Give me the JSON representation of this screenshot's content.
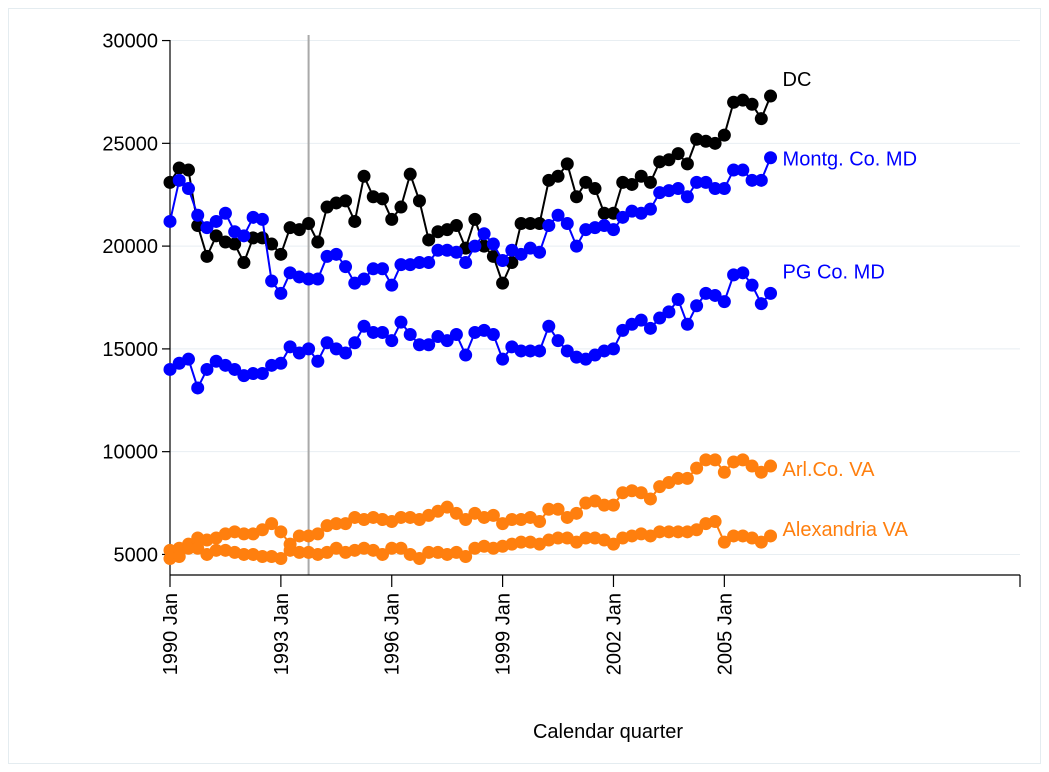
{
  "chart_data": {
    "type": "line",
    "title": "",
    "xlabel": "Calendar quarter",
    "ylabel": "",
    "ylim": [
      4000,
      31000
    ],
    "xlim": [
      "1990 Jan",
      "2013 Jan"
    ],
    "x_ticks": [
      "1990 Jan",
      "1993 Jan",
      "1996 Jan",
      "1999 Jan",
      "2002 Jan",
      "2005 Jan",
      ""
    ],
    "y_ticks": [
      "5000",
      "10000",
      "15000",
      "20000",
      "25000",
      "30000"
    ],
    "reference_line_x": "1993 Q4",
    "grid": true,
    "legend": "none",
    "x_start": "1990 Jan",
    "x_step": "quarter",
    "series": [
      {
        "name": "DC",
        "color": "#000000",
        "values": [
          23100,
          23800,
          23700,
          21000,
          19500,
          20500,
          20200,
          20100,
          19200,
          20400,
          20400,
          20100,
          19600,
          20900,
          20800,
          21100,
          20200,
          21900,
          22100,
          22200,
          21200,
          23400,
          22400,
          22300,
          21300,
          21900,
          23500,
          22200,
          20300,
          20700,
          20800,
          21000,
          19900,
          21300,
          20000,
          19500,
          18200,
          19200,
          21100,
          21100,
          21100,
          23200,
          23400,
          24000,
          22400,
          23100,
          22800,
          21600,
          21600,
          23100,
          23000,
          23400,
          23100,
          24100,
          24200,
          24500,
          24000,
          25200,
          25100,
          25000,
          25400,
          27000,
          27100,
          26900,
          26200,
          27300
        ]
      },
      {
        "name": "Montg. Co. MD",
        "color": "#0000ff",
        "values": [
          21200,
          23200,
          22800,
          21500,
          20900,
          21200,
          21600,
          20700,
          20500,
          21400,
          21300,
          18300,
          17700,
          18700,
          18500,
          18400,
          18400,
          19500,
          19600,
          19000,
          18200,
          18400,
          18900,
          18900,
          18100,
          19100,
          19100,
          19200,
          19200,
          19800,
          19800,
          19700,
          19200,
          20000,
          20600,
          20100,
          19300,
          19800,
          19600,
          19900,
          19700,
          21000,
          21500,
          21100,
          20000,
          20800,
          20900,
          21000,
          20800,
          21400,
          21700,
          21600,
          21800,
          22600,
          22700,
          22800,
          22400,
          23100,
          23100,
          22800,
          22800,
          23700,
          23700,
          23200,
          23200,
          24300
        ]
      },
      {
        "name": "PG Co. MD",
        "color": "#0000ff",
        "values": [
          14000,
          14300,
          14500,
          13100,
          14000,
          14400,
          14200,
          14000,
          13700,
          13800,
          13800,
          14200,
          14300,
          15100,
          14800,
          15000,
          14400,
          15300,
          15000,
          14800,
          15300,
          16100,
          15800,
          15800,
          15400,
          16300,
          15700,
          15200,
          15200,
          15600,
          15400,
          15700,
          14700,
          15800,
          15900,
          15700,
          14500,
          15100,
          14900,
          14900,
          14900,
          16100,
          15400,
          14900,
          14600,
          14500,
          14700,
          14900,
          15000,
          15900,
          16200,
          16400,
          16000,
          16500,
          16800,
          17400,
          16200,
          17100,
          17700,
          17600,
          17300,
          18600,
          18700,
          18100,
          17200,
          17700
        ]
      },
      {
        "name": "Arl.Co. VA",
        "color": "#ff7f0e",
        "values": [
          5200,
          5300,
          5500,
          5800,
          5700,
          5800,
          6000,
          6100,
          6000,
          6000,
          6200,
          6500,
          6100,
          5500,
          5900,
          5900,
          6000,
          6400,
          6500,
          6500,
          6800,
          6700,
          6800,
          6700,
          6600,
          6800,
          6800,
          6700,
          6900,
          7100,
          7300,
          7000,
          6700,
          7000,
          6800,
          6900,
          6500,
          6700,
          6700,
          6800,
          6600,
          7200,
          7200,
          6800,
          7000,
          7500,
          7600,
          7400,
          7400,
          8000,
          8100,
          8000,
          7700,
          8300,
          8500,
          8700,
          8700,
          9200,
          9600,
          9600,
          9000,
          9500,
          9600,
          9300,
          9000,
          9300
        ]
      },
      {
        "name": "Alexandria VA",
        "color": "#ff7f0e",
        "values": [
          4800,
          4900,
          5300,
          5300,
          5000,
          5200,
          5200,
          5100,
          5000,
          5000,
          4900,
          4900,
          4800,
          5200,
          5100,
          5100,
          5000,
          5100,
          5300,
          5100,
          5200,
          5300,
          5200,
          5000,
          5300,
          5300,
          5000,
          4800,
          5100,
          5100,
          5000,
          5100,
          4900,
          5300,
          5400,
          5300,
          5400,
          5500,
          5600,
          5600,
          5500,
          5700,
          5800,
          5800,
          5600,
          5800,
          5800,
          5700,
          5500,
          5800,
          5900,
          6000,
          5900,
          6100,
          6100,
          6100,
          6100,
          6200,
          6500,
          6600,
          5600,
          5900,
          5900,
          5800,
          5600,
          5900
        ]
      }
    ]
  }
}
